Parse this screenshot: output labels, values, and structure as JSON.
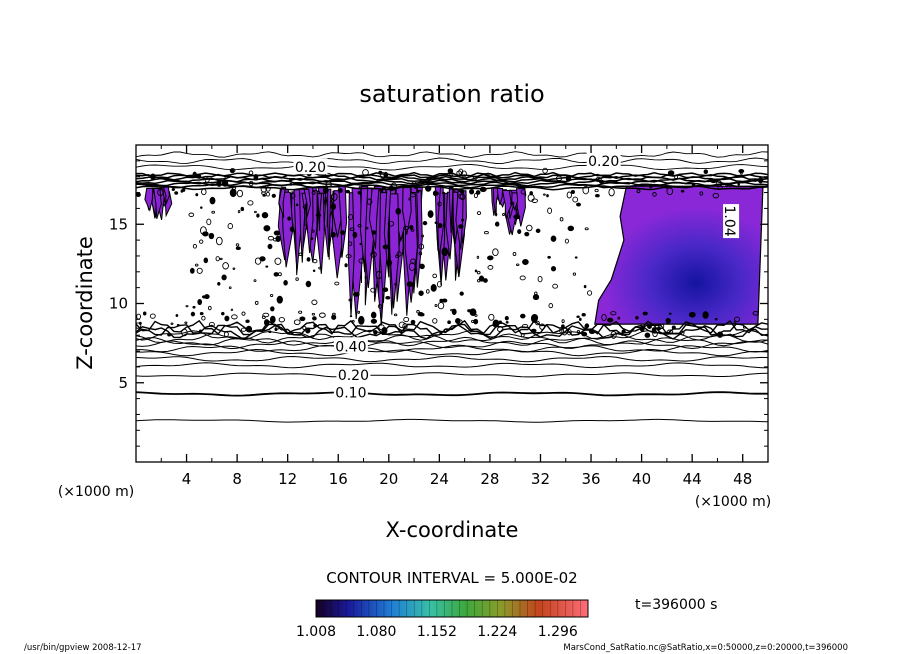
{
  "chart_data": {
    "type": "contour",
    "title": "saturation ratio",
    "xlabel": "X-coordinate",
    "ylabel": "Z-coordinate",
    "x_unit": "(×1000 m)",
    "y_unit": "(×1000 m)",
    "xlim": [
      0,
      50
    ],
    "ylim": [
      0,
      20
    ],
    "x_ticks": [
      4,
      8,
      12,
      16,
      20,
      24,
      28,
      32,
      36,
      40,
      44,
      48
    ],
    "y_ticks": [
      5,
      10,
      15
    ],
    "contour_interval_text": "CONTOUR INTERVAL = 5.000E-02",
    "time_text": "t=396000 s",
    "colorbar_labels": [
      "1.008",
      "1.080",
      "1.152",
      "1.224",
      "1.296"
    ],
    "colorbar_range": [
      1.008,
      1.332
    ],
    "contour_labels": [
      {
        "text": "0.20",
        "x": 37.0,
        "y": 19.0
      },
      {
        "text": "0.20",
        "x": 13.8,
        "y": 18.6
      },
      {
        "text": "0.40",
        "x": 17.0,
        "y": 7.3
      },
      {
        "text": "0.20",
        "x": 17.2,
        "y": 5.5
      },
      {
        "text": "0.10",
        "x": 17.0,
        "y": 4.4
      },
      {
        "text": "1.04",
        "x": 47.0,
        "y": 15.2
      }
    ],
    "footer_left": "/usr/bin/gpview   2008-12-17",
    "footer_right": "MarsCond_SatRatio.nc@SatRatio,x=0:50000,z=0:20000,t=396000"
  }
}
